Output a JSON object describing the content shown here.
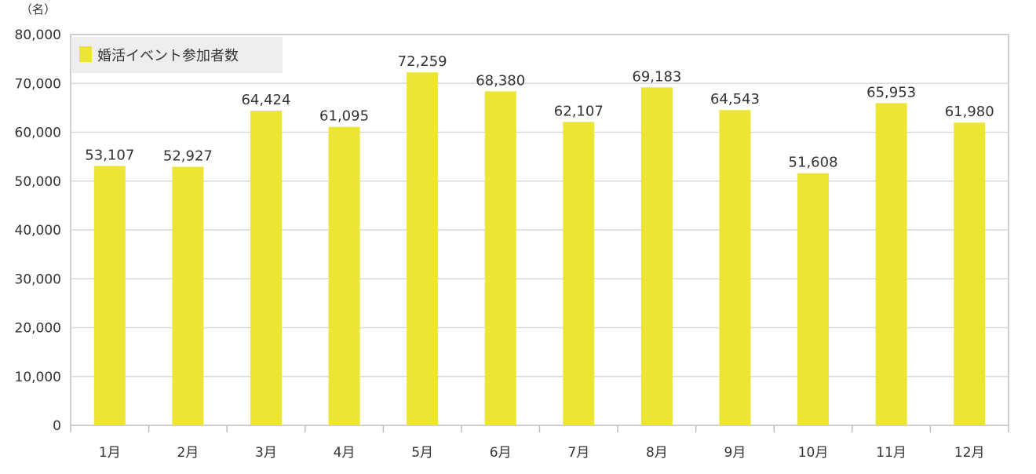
{
  "chart_data": {
    "type": "bar",
    "unit_label": "（名）",
    "categories": [
      "1月",
      "2月",
      "3月",
      "4月",
      "5月",
      "6月",
      "7月",
      "8月",
      "9月",
      "10月",
      "11月",
      "12月"
    ],
    "series": [
      {
        "name": "婚活イベント参加者数",
        "color": "#ece533",
        "values": [
          53107,
          52927,
          64424,
          61095,
          72259,
          68380,
          62107,
          69183,
          64543,
          51608,
          65953,
          61980
        ],
        "labels": [
          "53,107",
          "52,927",
          "64,424",
          "61,095",
          "72,259",
          "68,380",
          "62,107",
          "69,183",
          "64,543",
          "51,608",
          "65,953",
          "61,980"
        ]
      }
    ],
    "ylim": [
      0,
      80000
    ],
    "yticks": [
      0,
      10000,
      20000,
      30000,
      40000,
      50000,
      60000,
      70000,
      80000
    ],
    "ytick_labels": [
      "0",
      "10,000",
      "20,000",
      "30,000",
      "40,000",
      "50,000",
      "60,000",
      "70,000",
      "80,000"
    ],
    "grid": true,
    "legend_position": "top-left"
  }
}
